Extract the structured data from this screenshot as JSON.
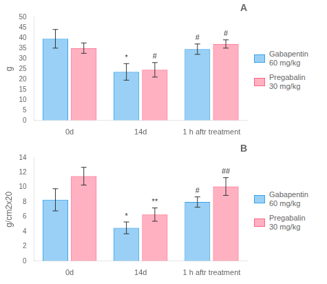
{
  "chart_data": [
    {
      "type": "bar",
      "title": "A",
      "ylabel": "g",
      "categories": [
        "0d",
        "14d",
        "1 h aftr treatment"
      ],
      "series": [
        {
          "name": "Gabapentin\n60 mg/kg",
          "values": [
            39.5,
            23.5,
            34.5
          ],
          "errors": [
            4.5,
            4.0,
            2.5
          ],
          "annotations": [
            null,
            "*",
            "#"
          ]
        },
        {
          "name": "Pregabalin\n30 mg/kg",
          "values": [
            35.0,
            24.5,
            37.0
          ],
          "errors": [
            2.5,
            3.5,
            2.0
          ],
          "annotations": [
            null,
            "#",
            "#"
          ]
        }
      ],
      "ylim": [
        0,
        50
      ],
      "yticks": [
        0,
        5,
        10,
        15,
        20,
        25,
        30,
        35,
        40,
        45,
        50
      ],
      "grid": false,
      "legend": "right"
    },
    {
      "type": "bar",
      "title": "B",
      "ylabel": "g/cm2x20",
      "categories": [
        "0d",
        "14d",
        "1 h aftr treatment"
      ],
      "series": [
        {
          "name": "Gabapentin\n60 mg/kg",
          "values": [
            8.3,
            4.5,
            8.0
          ],
          "errors": [
            1.5,
            0.8,
            0.7
          ],
          "annotations": [
            null,
            "*",
            "#"
          ]
        },
        {
          "name": "Pregabalin\n30 mg/kg",
          "values": [
            11.5,
            6.3,
            10.1
          ],
          "errors": [
            1.2,
            0.9,
            1.2
          ],
          "annotations": [
            null,
            "**",
            "##"
          ]
        }
      ],
      "ylim": [
        0,
        14
      ],
      "yticks": [
        0,
        2,
        4,
        6,
        8,
        10,
        12,
        14
      ],
      "grid": false,
      "legend": "right"
    }
  ]
}
